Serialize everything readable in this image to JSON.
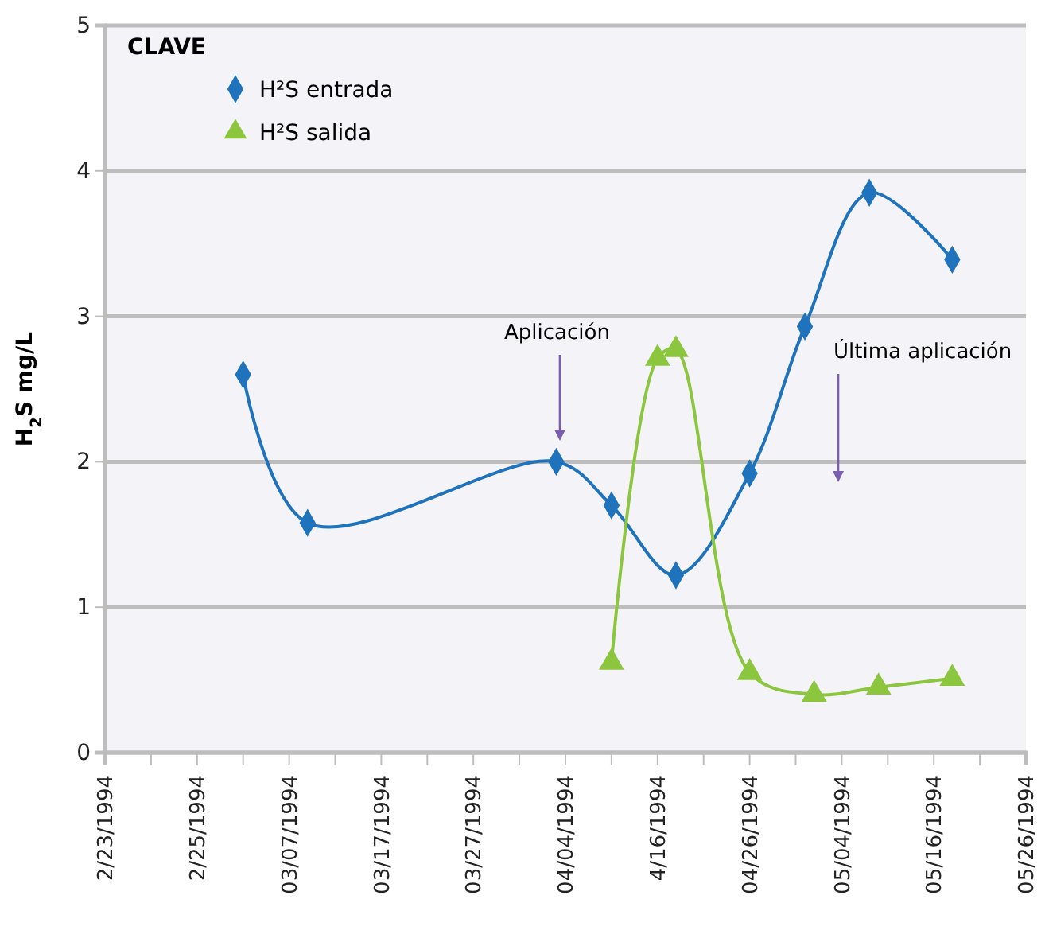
{
  "chart_data": {
    "type": "line",
    "ylabel": "H$_{2}$S mg/L",
    "legend_title": "CLAVE",
    "legend": "top left",
    "grid": "y",
    "line_style": "solid",
    "xlim": [
      "1994-02-15",
      "1994-05-26"
    ],
    "xticks": [
      {
        "value": "1994-02-15",
        "label": "2/23/1994"
      },
      {
        "value": "1994-02-20",
        "label": null
      },
      {
        "value": "1994-02-25",
        "label": "2/25/1994"
      },
      {
        "value": "1994-03-02",
        "label": null
      },
      {
        "value": "1994-03-07",
        "label": "03/07/1994"
      },
      {
        "value": "1994-03-12",
        "label": null
      },
      {
        "value": "1994-03-17",
        "label": "03/17/1994"
      },
      {
        "value": "1994-03-22",
        "label": null
      },
      {
        "value": "1994-03-27",
        "label": "03/27/1994"
      },
      {
        "value": "1994-04-01",
        "label": null
      },
      {
        "value": "1994-04-06",
        "label": "04/04/1994"
      },
      {
        "value": "1994-04-11",
        "label": null
      },
      {
        "value": "1994-04-16",
        "label": "4/16/1994"
      },
      {
        "value": "1994-04-21",
        "label": null
      },
      {
        "value": "1994-04-26",
        "label": "04/26/1994"
      },
      {
        "value": "1994-05-01",
        "label": null
      },
      {
        "value": "1994-05-06",
        "label": "05/04/1994"
      },
      {
        "value": "1994-05-11",
        "label": null
      },
      {
        "value": "1994-05-16",
        "label": "05/16/1994"
      },
      {
        "value": "1994-05-21",
        "label": null
      },
      {
        "value": "1994-05-26",
        "label": "05/26/1994"
      }
    ],
    "ylim": [
      0,
      5
    ],
    "yticks": [
      0,
      1,
      2,
      3,
      4,
      5
    ],
    "series": [
      {
        "name": "H²S  entrada",
        "color": "#1f73bd",
        "marker": "diamond",
        "x": [
          "1994-03-02",
          "1994-03-09",
          "1994-04-05",
          "1994-04-11",
          "1994-04-18",
          "1994-04-26",
          "1994-05-02",
          "1994-05-09",
          "1994-05-18"
        ],
        "values": [
          2.6,
          1.58,
          2.0,
          1.7,
          1.22,
          1.92,
          2.93,
          3.85,
          3.39
        ]
      },
      {
        "name": "H²S salida",
        "color": "#8cc63f",
        "marker": "triangle",
        "x": [
          "1994-04-11",
          "1994-04-16",
          "1994-04-18",
          "1994-04-26",
          "1994-05-03",
          "1994-05-10",
          "1994-05-18"
        ],
        "values": [
          0.62,
          2.71,
          2.77,
          0.55,
          0.4,
          0.45,
          0.51
        ]
      }
    ],
    "annotations": [
      "Aplicación",
      "Última aplicación"
    ]
  }
}
